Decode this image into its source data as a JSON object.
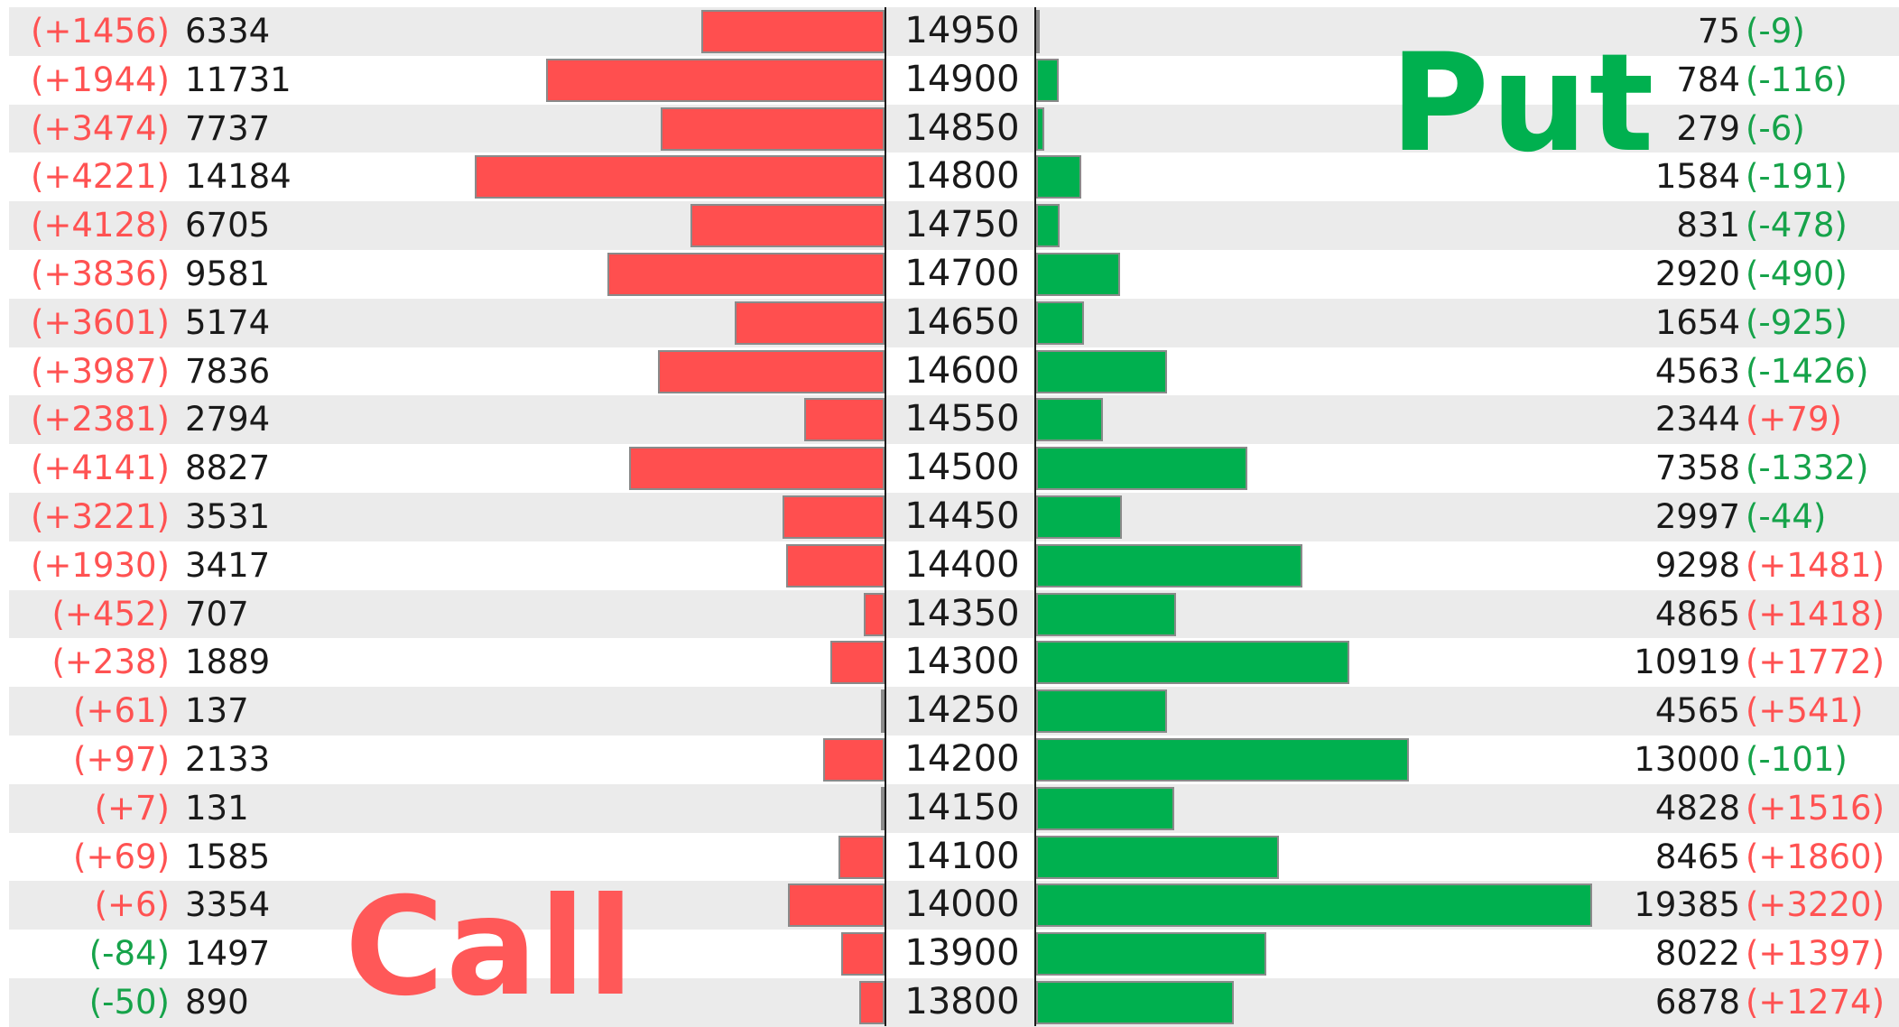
{
  "labels": {
    "call": "Call",
    "put": "Put"
  },
  "colors": {
    "call_bar": "#ff4f4f",
    "put_bar": "#00b04f",
    "positive_change": "#ff5252",
    "negative_change": "#16a34a",
    "row_shade": "#ebebeb"
  },
  "chart_data": {
    "type": "bar",
    "orientation": "horizontal",
    "layout": "butterfly",
    "categories": [
      "14950",
      "14900",
      "14850",
      "14800",
      "14750",
      "14700",
      "14650",
      "14600",
      "14550",
      "14500",
      "14450",
      "14400",
      "14350",
      "14300",
      "14250",
      "14200",
      "14150",
      "14100",
      "14000",
      "13900",
      "13800"
    ],
    "series": [
      {
        "name": "Call",
        "values": [
          6334,
          11731,
          7737,
          14184,
          6705,
          9581,
          5174,
          7836,
          2794,
          8827,
          3531,
          3417,
          707,
          1889,
          137,
          2133,
          131,
          1585,
          3354,
          1497,
          890
        ]
      },
      {
        "name": "Put",
        "values": [
          75,
          784,
          279,
          1584,
          831,
          2920,
          1654,
          4563,
          2344,
          7358,
          2997,
          9298,
          4865,
          10919,
          4565,
          13000,
          4828,
          8465,
          19385,
          8022,
          6878
        ]
      }
    ],
    "call_change_labels": [
      "(+1456)",
      "(+1944)",
      "(+3474)",
      "(+4221)",
      "(+4128)",
      "(+3836)",
      "(+3601)",
      "(+3987)",
      "(+2381)",
      "(+4141)",
      "(+3221)",
      "(+1930)",
      "(+452)",
      "(+238)",
      "(+61)",
      "(+97)",
      "(+7)",
      "(+69)",
      "(+6)",
      "(-84)",
      "(-50)"
    ],
    "put_change_labels": [
      "(-9)",
      "(-116)",
      "(-6)",
      "(-191)",
      "(-478)",
      "(-490)",
      "(-925)",
      "(-1426)",
      "(+79)",
      "(-1332)",
      "(-44)",
      "(+1481)",
      "(+1418)",
      "(+1772)",
      "(+541)",
      "(-101)",
      "(+1516)",
      "(+1860)",
      "(+3220)",
      "(+1397)",
      "(+1274)"
    ],
    "grid": false,
    "legend": "none"
  }
}
